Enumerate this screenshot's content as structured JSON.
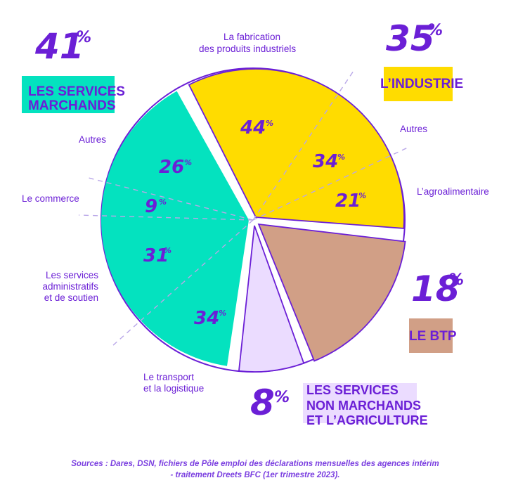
{
  "chart_data": {
    "type": "pie",
    "sectors": [
      {
        "name": "LES SERVICES MARCHANDS",
        "name_lines": [
          "LES SERVICES",
          "MARCHANDS"
        ],
        "percent_label": "41",
        "value": 41,
        "color": "#04e2bf",
        "sub_breakdown": [
          {
            "label": "Autres",
            "value_label": "26",
            "value": 26
          },
          {
            "label": "Le commerce",
            "value_label": "9",
            "value": 9
          },
          {
            "label": "Les services administratifs et de soutien",
            "label_lines": [
              "Les services",
              "administratifs",
              "et de soutien"
            ],
            "value_label": "31",
            "value": 31
          },
          {
            "label": "Le transport et la logistique",
            "label_lines": [
              "Le transport",
              "et la logistique"
            ],
            "value_label": "34",
            "value": 34
          }
        ]
      },
      {
        "name": "L’INDUSTRIE",
        "name_lines": [
          "L’INDUSTRIE"
        ],
        "percent_label": "35",
        "value": 35,
        "color": "#ffdc00",
        "sub_breakdown": [
          {
            "label": "La fabrication des produits industriels",
            "label_lines": [
              "La fabrication",
              "des produits industriels"
            ],
            "value_label": "44",
            "value": 44
          },
          {
            "label": "Autres",
            "value_label": "34",
            "value": 34
          },
          {
            "label": "L’agroalimentaire",
            "value_label": "21",
            "value": 21
          }
        ]
      },
      {
        "name": "LE BTP",
        "name_lines": [
          "LE BTP"
        ],
        "percent_label": "18",
        "value": 18,
        "color": "#d19f86"
      },
      {
        "name": "LES SERVICES NON MARCHANDS ET L’AGRICULTURE",
        "name_lines": [
          "LES SERVICES",
          "NON MARCHANDS",
          "ET L’AGRICULTURE"
        ],
        "percent_label": "8",
        "value": 8,
        "color": "#ebdcff"
      }
    ],
    "percent_sign": "%",
    "source_lines": [
      "Sources : Dares, DSN, fichiers de Pôle emploi des déclarations mensuelles des agences intérim",
      "- traitement Dreets BFC (1er trimestre 2023)."
    ]
  },
  "colors": {
    "text": "#6b1fd6",
    "outline": "#6b1fd6",
    "dash": "#b9a7e8"
  }
}
